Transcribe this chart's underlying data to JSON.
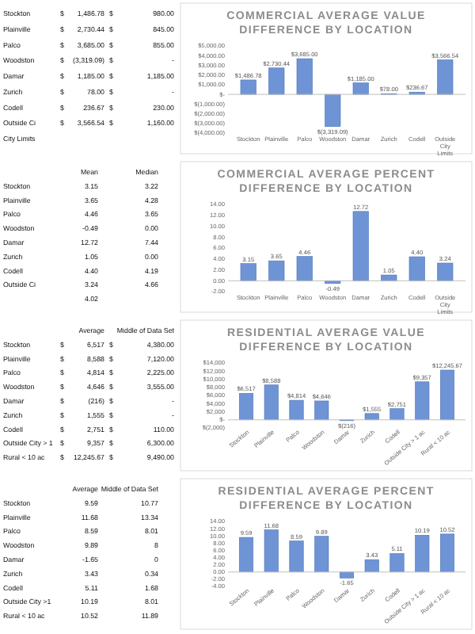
{
  "chart_data": [
    {
      "type": "other",
      "annotations": [
        "Stockton\t$\t1,486.78\t$\t980.00",
        "Plainville\t$\t2,730.44\t$\t845.00",
        "Palco\t$\t3,685.00\t$\t855.00",
        "Woodston\t$\t(3,319.09)\t$\t-",
        "Damar\t$\t1,185.00\t$\t1,185.00",
        "Zurich\t$\t78.00\t$\t-",
        "Codell\t$\t236.67\t$\t230.00",
        "Outside Ci\t$\t3,566.54\t$\t1,160.00",
        "City Limits"
      ]
    },
    {
      "type": "bar",
      "title": "COMMERCIAL AVERAGE VALUE DIFFERENCE BY LOCATION",
      "categories": [
        "Stockton",
        "Plainville",
        "Palco",
        "Woodston",
        "Damar",
        "Zurich",
        "Codell",
        "Outside City Limits"
      ],
      "color": "#6f94d6",
      "values": [
        1486.78,
        2730.44,
        3685,
        -3319.09,
        1185,
        78,
        236.67,
        3566.54
      ],
      "value_labels": [
        "$1,486.78",
        "$2,730.44",
        "$3,685.00",
        "$(3,319.09)",
        "$1,185.00",
        "$78.00",
        "$236.67",
        "$3,566.54"
      ],
      "ylim": [
        -4000,
        5000
      ],
      "yticks": [
        {
          "value": -4000,
          "label": "$(4,000.00)"
        },
        {
          "value": -3000,
          "label": "$(3,000.00)"
        },
        {
          "value": -2000,
          "label": "$(2,000.00)"
        },
        {
          "value": -1000,
          "label": "$(1,000.00)"
        },
        {
          "value": 0,
          "label": "$-"
        },
        {
          "value": 1000,
          "label": "$1,000.00"
        },
        {
          "value": 2000,
          "label": "$2,000.00"
        },
        {
          "value": 3000,
          "label": "$3,000.00"
        },
        {
          "value": 4000,
          "label": "$4,000.00"
        },
        {
          "value": 5000,
          "label": "$5,000.00"
        }
      ]
    },
    {
      "type": "other",
      "annotations": [
        "\tMean\tMedian",
        "Stockton\t3.15\t3.22",
        "Plainville\t3.65\t4.28",
        "Palco\t4.46\t3.65",
        "Woodston\t-0.49\t0.00",
        "Damar\t12.72\t7.44",
        "Zurich\t1.05\t0.00",
        "Codell\t4.40\t4.19",
        "Outside Ci\t3.24\t4.66",
        "\t4.02"
      ]
    },
    {
      "type": "bar",
      "title": "COMMERCIAL AVERAGE PERCENT DIFFERENCE BY LOCATION",
      "categories": [
        "Stockton",
        "Plainville",
        "Palco",
        "Woodston",
        "Damar",
        "Zurich",
        "Codell",
        "Outside City Limits"
      ],
      "color": "#6f94d6",
      "values": [
        3.15,
        3.65,
        4.46,
        -0.49,
        12.72,
        1.05,
        4.4,
        3.24
      ],
      "value_labels": [
        "3.15",
        "3.65",
        "4.46",
        "-0.49",
        "12.72",
        "1.05",
        "4.40",
        "3.24"
      ],
      "ylim": [
        -2,
        14
      ],
      "yticks": [
        {
          "value": -2,
          "label": "-2.00"
        },
        {
          "value": 0,
          "label": "0.00"
        },
        {
          "value": 2,
          "label": "2.00"
        },
        {
          "value": 4,
          "label": "4.00"
        },
        {
          "value": 6,
          "label": "6.00"
        },
        {
          "value": 8,
          "label": "8.00"
        },
        {
          "value": 10,
          "label": "10.00"
        },
        {
          "value": 12,
          "label": "12.00"
        },
        {
          "value": 14,
          "label": "14.00"
        }
      ]
    },
    {
      "type": "other",
      "annotations": [
        "\t\tAverage\t\tMiddle of Data Set",
        "Stockton\t$\t6,517\t$\t4,380.00",
        "Plainville\t$\t8,588\t$\t7,120.00",
        "Palco\t$\t4,814\t$\t2,225.00",
        "Woodston\t$\t4,646\t$\t3,555.00",
        "Damar\t$\t(216)\t$\t-",
        "Zurich\t$\t1,555\t$\t-",
        "Codell\t$\t2,751\t$\t110.00",
        "Outside City > 1\t$\t9,357\t$\t6,300.00",
        "Rural < 10 ac\t$\t12,245.67\t$\t9,490.00"
      ]
    },
    {
      "type": "bar",
      "title": "RESIDENTIAL AVERAGE VALUE DIFFERENCE BY LOCATION",
      "categories": [
        "Stockton",
        "Plainville",
        "Palco",
        "Woodston",
        "Damar",
        "Zurich",
        "Codell",
        "Outside City > 1 ac",
        "Rural < 10 ac"
      ],
      "color": "#6f94d6",
      "values": [
        6517,
        8588,
        4814,
        4646,
        -216,
        1555,
        2751,
        9357,
        12245.67
      ],
      "value_labels": [
        "$6,517",
        "$8,588",
        "$4,814",
        "$4,646",
        "$(216)",
        "$1,555",
        "$2,751",
        "$9,357",
        "$12,245.67"
      ],
      "ylim": [
        -2000,
        14000
      ],
      "yticks": [
        {
          "value": -2000,
          "label": "$(2,000)"
        },
        {
          "value": 0,
          "label": "$-"
        },
        {
          "value": 2000,
          "label": "$2,000"
        },
        {
          "value": 4000,
          "label": "$4,000"
        },
        {
          "value": 6000,
          "label": "$6,000"
        },
        {
          "value": 8000,
          "label": "$8,000"
        },
        {
          "value": 10000,
          "label": "$10,000"
        },
        {
          "value": 12000,
          "label": "$12,000"
        },
        {
          "value": 14000,
          "label": "$14,000"
        }
      ]
    },
    {
      "type": "other",
      "annotations": [
        "\tAverage\tMiddle of Data Set",
        "Stockton\t9.59\t10.77",
        "Plainville\t11.68\t13.34",
        "Palco\t8.59\t8.01",
        "Woodston\t9.89\t8",
        "Damar\t-1.65\t0",
        "Zurich\t3.43\t0.34",
        "Codell\t5.11\t1.68",
        "Outside City >1\t10.19\t8.01",
        "Rural < 10 ac\t10.52\t11.89"
      ]
    },
    {
      "type": "bar",
      "title": "RESIDENTIAL AVERAGE PERCENT DIFFERENCE BY LOCATION",
      "categories": [
        "Stockton",
        "Plainville",
        "Palco",
        "Woodston",
        "Damar",
        "Zurich",
        "Codell",
        "Outside City > 1 ac",
        "Rural < 10 ac"
      ],
      "color": "#6f94d6",
      "values": [
        9.59,
        11.68,
        8.59,
        9.89,
        -1.65,
        3.43,
        5.11,
        10.19,
        10.52
      ],
      "value_labels": [
        "9.59",
        "11.68",
        "8.59",
        "9.89",
        "-1.65",
        "3.43",
        "5.11",
        "10.19",
        "10.52"
      ],
      "ylim": [
        -4,
        14
      ],
      "yticks": [
        {
          "value": -4,
          "label": "-4.00"
        },
        {
          "value": -2,
          "label": "-2.00"
        },
        {
          "value": 0,
          "label": "0.00"
        },
        {
          "value": 2,
          "label": "2.00"
        },
        {
          "value": 4,
          "label": "4.00"
        },
        {
          "value": 6,
          "label": "6.00"
        },
        {
          "value": 8,
          "label": "8.00"
        },
        {
          "value": 10,
          "label": "10.00"
        },
        {
          "value": 12,
          "label": "12.00"
        },
        {
          "value": 14,
          "label": "14.00"
        }
      ]
    }
  ]
}
